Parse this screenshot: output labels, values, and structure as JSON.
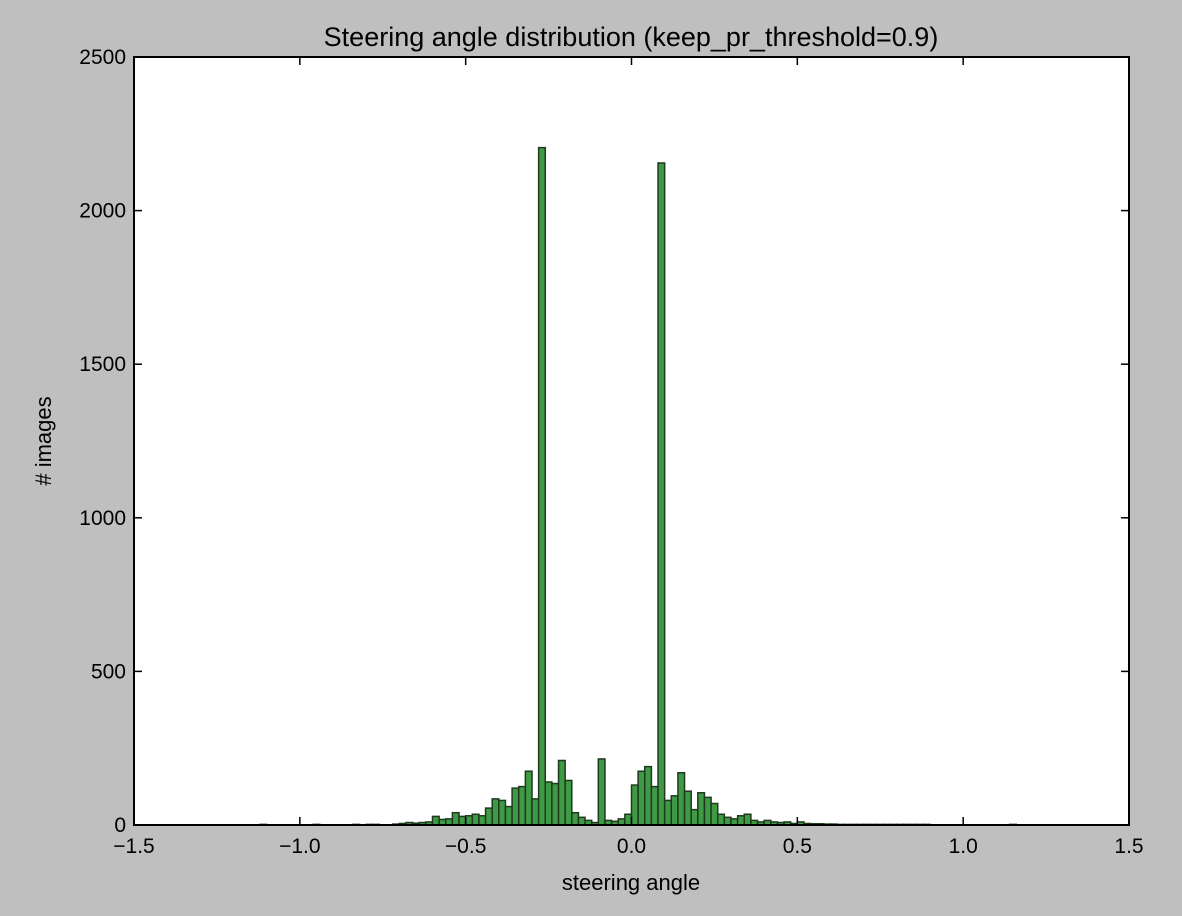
{
  "chart_data": {
    "type": "bar",
    "title": "Steering angle distribution (keep_pr_threshold=0.9)",
    "xlabel": "steering angle",
    "ylabel": "# images",
    "xlim": [
      -1.5,
      1.5
    ],
    "ylim": [
      0,
      2500
    ],
    "xticks": [
      -1.5,
      -1.0,
      -0.5,
      0.0,
      0.5,
      1.0,
      1.5
    ],
    "xtick_labels": [
      "−1.5",
      "−1.0",
      "−0.5",
      "0.0",
      "0.5",
      "1.0",
      "1.5"
    ],
    "yticks": [
      0,
      500,
      1000,
      1500,
      2000,
      2500
    ],
    "ytick_labels": [
      "0",
      "500",
      "1000",
      "1500",
      "2000",
      "2500"
    ],
    "grid": false,
    "bar_color": "#3f9a45",
    "bar_edge_color": "#1f3a1f",
    "bin_width": 0.02,
    "bin_starts": [
      -1.12,
      -0.96,
      -0.84,
      -0.8,
      -0.78,
      -0.72,
      -0.7,
      -0.68,
      -0.66,
      -0.64,
      -0.62,
      -0.6,
      -0.58,
      -0.56,
      -0.54,
      -0.52,
      -0.5,
      -0.48,
      -0.46,
      -0.44,
      -0.42,
      -0.4,
      -0.38,
      -0.36,
      -0.34,
      -0.32,
      -0.3,
      -0.28,
      -0.26,
      -0.24,
      -0.22,
      -0.2,
      -0.18,
      -0.16,
      -0.14,
      -0.12,
      -0.1,
      -0.08,
      -0.06,
      -0.04,
      -0.02,
      0.0,
      0.02,
      0.04,
      0.06,
      0.08,
      0.1,
      0.12,
      0.14,
      0.16,
      0.18,
      0.2,
      0.22,
      0.24,
      0.26,
      0.28,
      0.3,
      0.32,
      0.34,
      0.36,
      0.38,
      0.4,
      0.42,
      0.44,
      0.46,
      0.48,
      0.5,
      0.52,
      0.54,
      0.56,
      0.58,
      0.6,
      0.62,
      0.64,
      0.66,
      0.68,
      0.7,
      0.72,
      0.74,
      0.76,
      0.78,
      0.8,
      0.82,
      0.84,
      0.86,
      0.88,
      1.14
    ],
    "values": [
      2,
      2,
      2,
      2,
      2,
      3,
      5,
      8,
      6,
      8,
      10,
      28,
      18,
      20,
      40,
      28,
      30,
      35,
      30,
      55,
      85,
      80,
      60,
      120,
      125,
      175,
      85,
      2205,
      140,
      135,
      210,
      145,
      40,
      25,
      15,
      8,
      215,
      15,
      12,
      20,
      35,
      130,
      175,
      190,
      125,
      2155,
      80,
      95,
      170,
      110,
      50,
      105,
      90,
      70,
      35,
      25,
      20,
      30,
      35,
      15,
      10,
      15,
      10,
      8,
      10,
      5,
      10,
      5,
      4,
      4,
      3,
      3,
      2,
      2,
      2,
      2,
      2,
      2,
      2,
      2,
      2,
      2,
      2,
      2,
      2,
      2,
      2
    ]
  }
}
